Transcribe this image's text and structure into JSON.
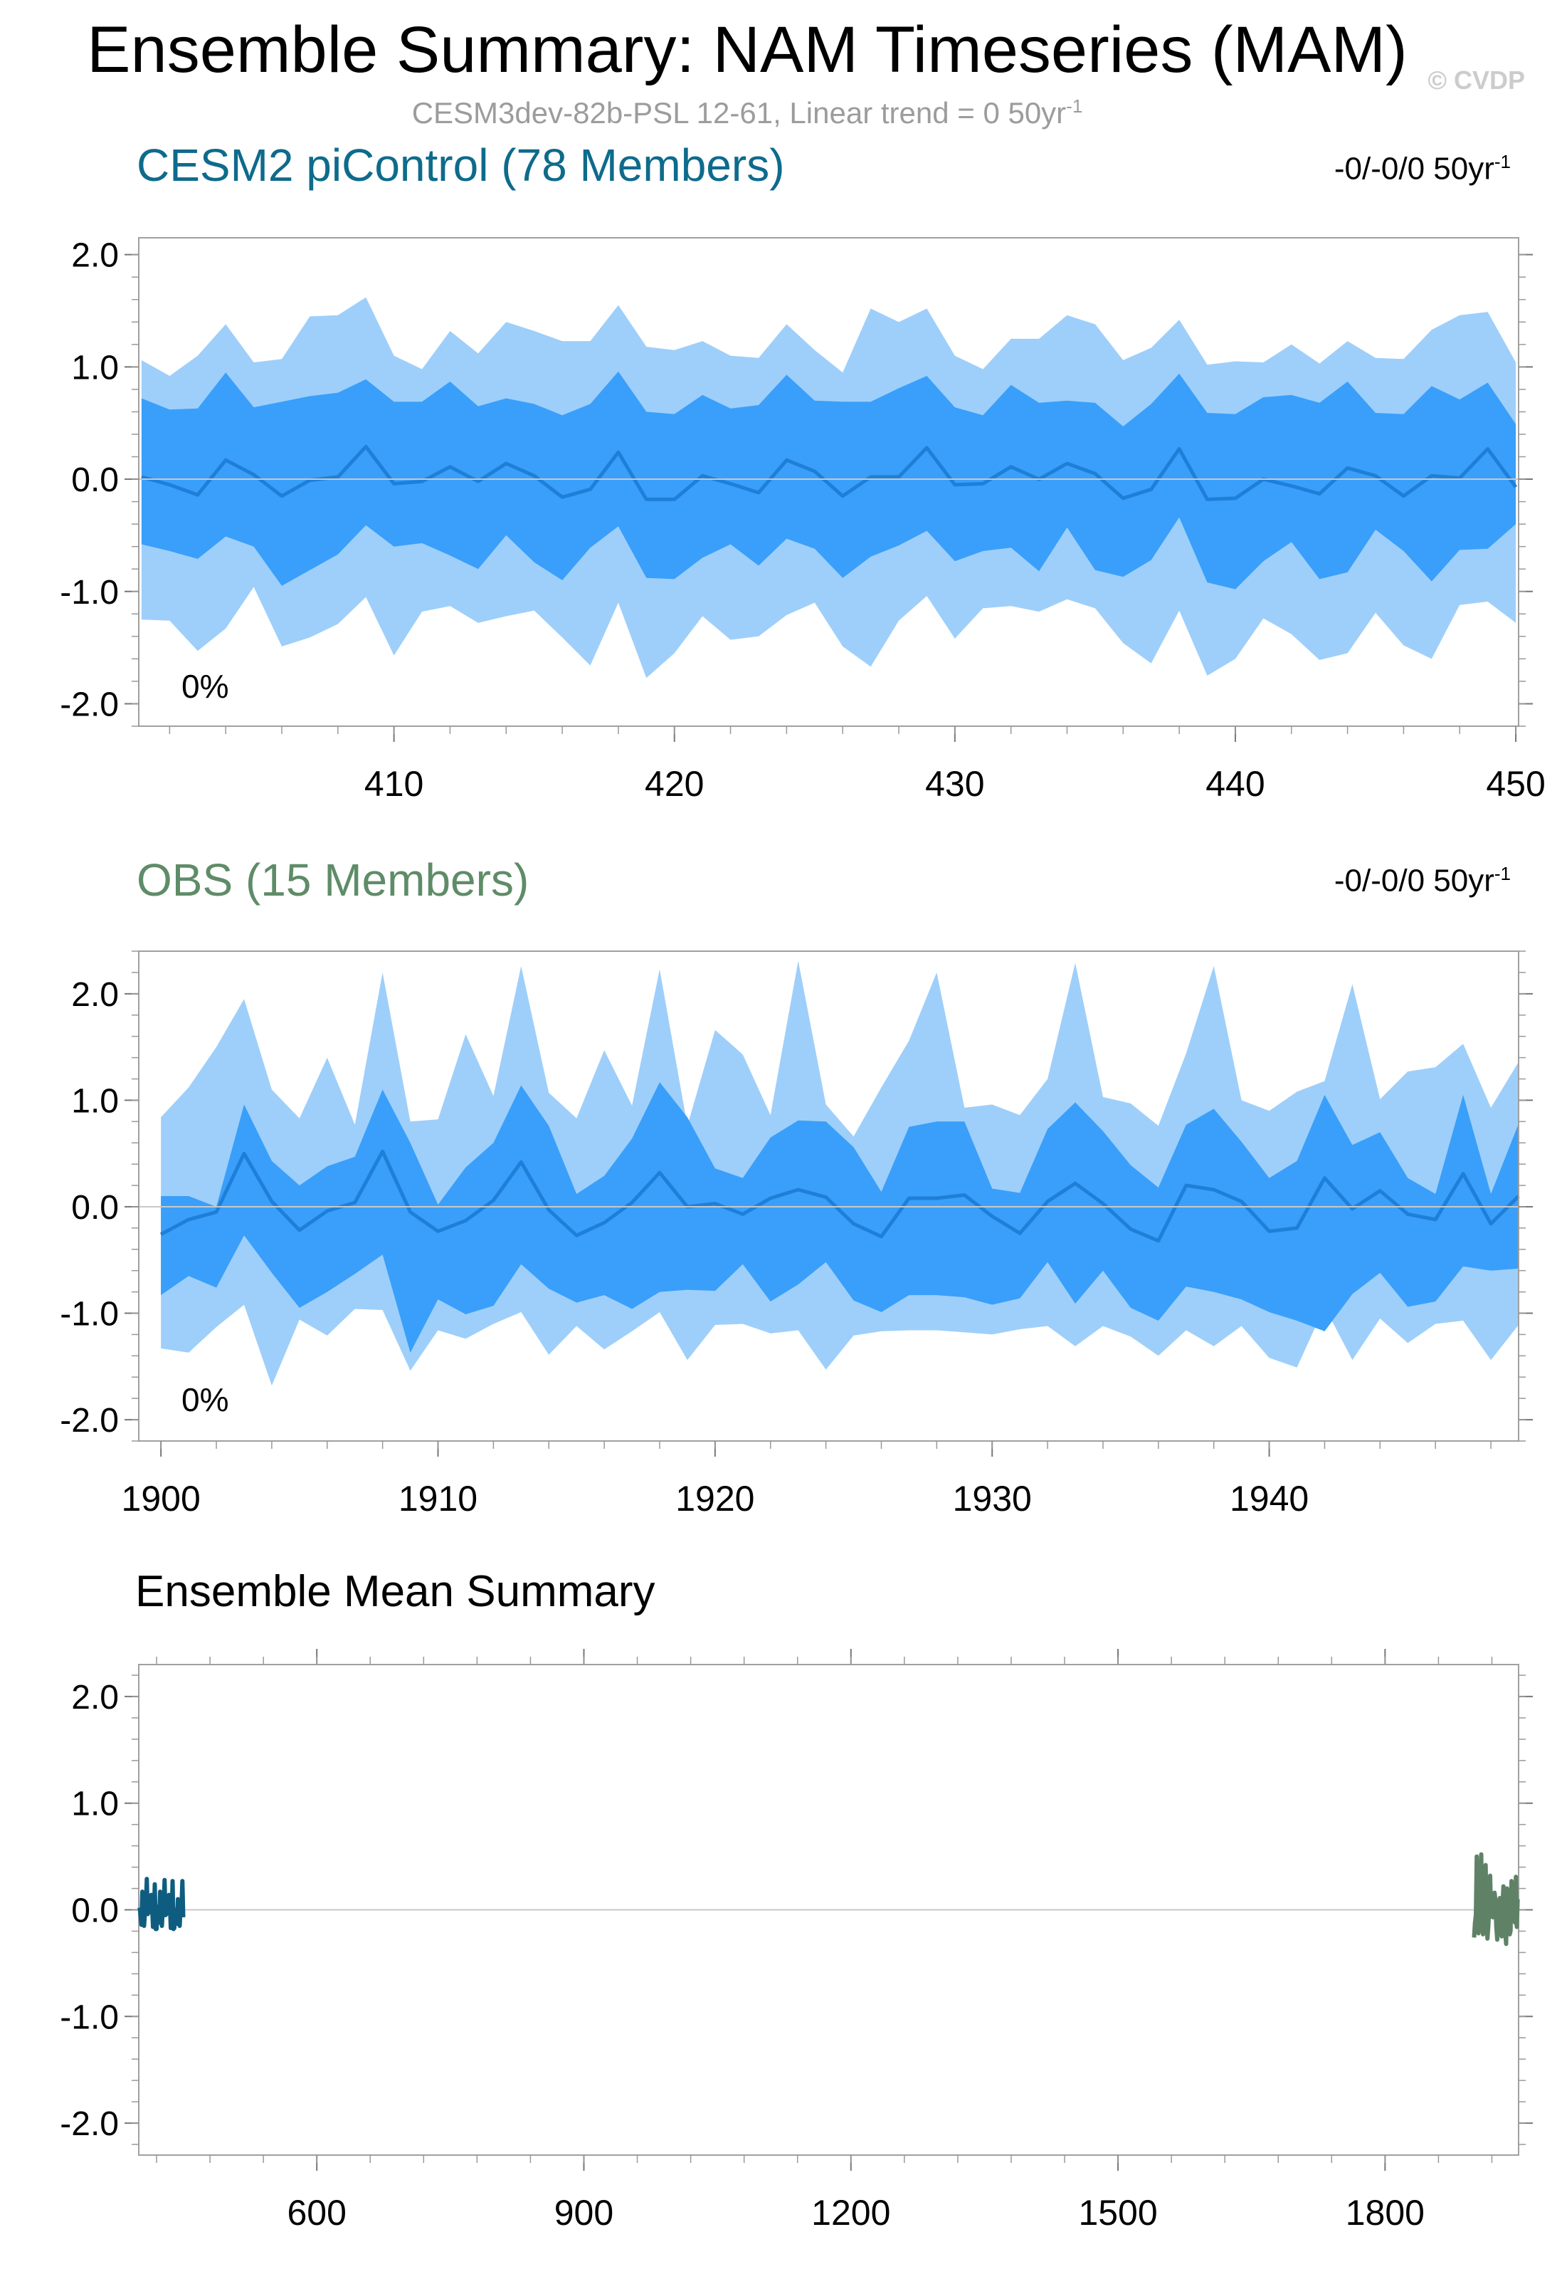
{
  "header": {
    "title": "Ensemble Summary: NAM Timeseries (MAM)",
    "copyright": "© CVDP",
    "subtitle_main": "CESM3dev-82b-PSL 12-61, Linear trend = 0 50yr",
    "subtitle_sup": "-1"
  },
  "colors": {
    "outer_band": "#9ecffa",
    "inner_band": "#399ffa",
    "mean_line": "#1f7fd8",
    "cesm_title": "#0e6b8c",
    "obs_title": "#5f8c68",
    "cesm_mean": "#0e5d80",
    "obs_mean": "#5f8266"
  },
  "panels": [
    {
      "title": "CESM2 piControl (78 Members)",
      "trend_main": "-0/-0/0 50yr",
      "trend_sup": "-1",
      "percent_label": "0%"
    },
    {
      "title": "OBS (15 Members)",
      "trend_main": "-0/-0/0 50yr",
      "trend_sup": "-1",
      "percent_label": "0%"
    },
    {
      "title": "Ensemble Mean Summary"
    }
  ],
  "chart_data": [
    {
      "type": "area",
      "title": "CESM2 piControl (78 Members)",
      "x": [
        401,
        402,
        403,
        404,
        405,
        406,
        407,
        408,
        409,
        410,
        411,
        412,
        413,
        414,
        415,
        416,
        417,
        418,
        419,
        420,
        421,
        422,
        423,
        424,
        425,
        426,
        427,
        428,
        429,
        430,
        431,
        432,
        433,
        434,
        435,
        436,
        437,
        438,
        439,
        440,
        441,
        442,
        443,
        444,
        445,
        446,
        447,
        448,
        449,
        450
      ],
      "outer_upper": [
        1.06,
        0.92,
        1.1,
        1.38,
        1.04,
        1.07,
        1.45,
        1.46,
        1.62,
        1.1,
        0.98,
        1.32,
        1.12,
        1.4,
        1.32,
        1.23,
        1.23,
        1.55,
        1.18,
        1.15,
        1.23,
        1.1,
        1.08,
        1.38,
        1.15,
        0.95,
        1.52,
        1.4,
        1.52,
        1.1,
        0.98,
        1.25,
        1.25,
        1.46,
        1.38,
        1.06,
        1.17,
        1.42,
        1.02,
        1.05,
        1.04,
        1.2,
        1.03,
        1.23,
        1.08,
        1.07,
        1.33,
        1.46,
        1.49,
        1.04
      ],
      "inner_upper": [
        0.72,
        0.62,
        0.63,
        0.95,
        0.64,
        0.69,
        0.74,
        0.77,
        0.89,
        0.69,
        0.69,
        0.87,
        0.65,
        0.72,
        0.67,
        0.57,
        0.67,
        0.96,
        0.6,
        0.58,
        0.75,
        0.63,
        0.66,
        0.93,
        0.7,
        0.69,
        0.69,
        0.81,
        0.92,
        0.64,
        0.57,
        0.84,
        0.68,
        0.7,
        0.68,
        0.47,
        0.67,
        0.94,
        0.59,
        0.58,
        0.73,
        0.75,
        0.68,
        0.87,
        0.59,
        0.58,
        0.83,
        0.71,
        0.86,
        0.49
      ],
      "mean": [
        0.02,
        -0.05,
        -0.14,
        0.17,
        0.04,
        -0.15,
        -0.01,
        0.02,
        0.29,
        -0.04,
        -0.02,
        0.11,
        -0.02,
        0.14,
        0.03,
        -0.16,
        -0.09,
        0.24,
        -0.18,
        -0.18,
        0.03,
        -0.04,
        -0.12,
        0.17,
        0.07,
        -0.15,
        0.02,
        0.02,
        0.28,
        -0.05,
        -0.04,
        0.11,
        0.0,
        0.14,
        0.05,
        -0.17,
        -0.09,
        0.27,
        -0.18,
        -0.17,
        0.0,
        -0.06,
        -0.13,
        0.1,
        0.03,
        -0.15,
        0.03,
        0.01,
        0.27,
        -0.07
      ],
      "inner_lower": [
        -0.58,
        -0.64,
        -0.71,
        -0.51,
        -0.6,
        -0.95,
        -0.81,
        -0.67,
        -0.41,
        -0.6,
        -0.57,
        -0.68,
        -0.8,
        -0.5,
        -0.74,
        -0.9,
        -0.61,
        -0.42,
        -0.88,
        -0.89,
        -0.7,
        -0.58,
        -0.77,
        -0.53,
        -0.62,
        -0.88,
        -0.69,
        -0.59,
        -0.46,
        -0.73,
        -0.64,
        -0.61,
        -0.82,
        -0.43,
        -0.81,
        -0.87,
        -0.72,
        -0.34,
        -0.92,
        -0.98,
        -0.73,
        -0.56,
        -0.89,
        -0.83,
        -0.45,
        -0.64,
        -0.91,
        -0.63,
        -0.62,
        -0.4
      ],
      "outer_lower": [
        -1.25,
        -1.26,
        -1.53,
        -1.33,
        -0.96,
        -1.49,
        -1.41,
        -1.29,
        -1.05,
        -1.57,
        -1.18,
        -1.13,
        -1.28,
        -1.22,
        -1.17,
        -1.41,
        -1.66,
        -1.1,
        -1.77,
        -1.55,
        -1.22,
        -1.43,
        -1.4,
        -1.21,
        -1.1,
        -1.49,
        -1.67,
        -1.26,
        -1.04,
        -1.42,
        -1.15,
        -1.13,
        -1.18,
        -1.07,
        -1.15,
        -1.46,
        -1.64,
        -1.17,
        -1.75,
        -1.6,
        -1.24,
        -1.38,
        -1.61,
        -1.55,
        -1.19,
        -1.48,
        -1.6,
        -1.12,
        -1.09,
        -1.28
      ],
      "xticks": [
        410,
        420,
        430,
        440,
        450
      ],
      "xlim": [
        400.9,
        450.1
      ],
      "ylim": [
        -2.2,
        2.15
      ],
      "yticks": [
        "2.0",
        "1.0",
        "0.0",
        "-1.0",
        "-2.0"
      ]
    },
    {
      "type": "area",
      "title": "OBS (15 Members)",
      "x": [
        1900,
        1901,
        1902,
        1903,
        1904,
        1905,
        1906,
        1907,
        1908,
        1909,
        1910,
        1911,
        1912,
        1913,
        1914,
        1915,
        1916,
        1917,
        1918,
        1919,
        1920,
        1921,
        1922,
        1923,
        1924,
        1925,
        1926,
        1927,
        1928,
        1929,
        1930,
        1931,
        1932,
        1933,
        1934,
        1935,
        1936,
        1937,
        1938,
        1939,
        1940,
        1941,
        1942,
        1943,
        1944,
        1945,
        1946,
        1947,
        1948,
        1949
      ],
      "outer_upper": [
        0.84,
        1.12,
        1.5,
        1.95,
        1.1,
        0.83,
        1.4,
        0.77,
        2.2,
        0.8,
        0.82,
        1.62,
        1.04,
        2.26,
        1.07,
        0.83,
        1.47,
        0.95,
        2.23,
        0.76,
        1.66,
        1.43,
        0.86,
        2.31,
        0.96,
        0.66,
        1.12,
        1.56,
        2.2,
        0.93,
        0.96,
        0.86,
        1.2,
        2.29,
        1.03,
        0.97,
        0.76,
        1.44,
        2.26,
        1.0,
        0.9,
        1.08,
        1.18,
        2.09,
        1.01,
        1.27,
        1.31,
        1.53,
        0.93,
        1.36
      ],
      "inner_upper": [
        0.1,
        0.1,
        0.0,
        0.96,
        0.43,
        0.2,
        0.38,
        0.47,
        1.1,
        0.6,
        0.02,
        0.37,
        0.6,
        1.14,
        0.76,
        0.12,
        0.29,
        0.64,
        1.17,
        0.84,
        0.36,
        0.27,
        0.65,
        0.81,
        0.8,
        0.56,
        0.14,
        0.75,
        0.8,
        0.8,
        0.17,
        0.13,
        0.73,
        0.98,
        0.71,
        0.39,
        0.18,
        0.77,
        0.92,
        0.61,
        0.27,
        0.43,
        1.05,
        0.58,
        0.7,
        0.27,
        0.12,
        1.05,
        0.12,
        0.78
      ],
      "mean": [
        -0.26,
        -0.12,
        -0.05,
        0.5,
        0.05,
        -0.22,
        -0.04,
        0.04,
        0.52,
        -0.05,
        -0.23,
        -0.13,
        0.06,
        0.42,
        -0.03,
        -0.27,
        -0.15,
        0.04,
        0.32,
        0.0,
        0.03,
        -0.07,
        0.08,
        0.16,
        0.09,
        -0.16,
        -0.28,
        0.08,
        0.08,
        0.11,
        -0.09,
        -0.25,
        0.05,
        0.22,
        0.03,
        -0.21,
        -0.32,
        0.2,
        0.16,
        0.05,
        -0.23,
        -0.2,
        0.27,
        -0.02,
        0.15,
        -0.07,
        -0.12,
        0.31,
        -0.16,
        0.1
      ],
      "inner_lower": [
        -0.83,
        -0.65,
        -0.76,
        -0.27,
        -0.62,
        -0.95,
        -0.8,
        -0.63,
        -0.45,
        -1.37,
        -0.87,
        -1.01,
        -0.93,
        -0.54,
        -0.77,
        -0.9,
        -0.83,
        -0.96,
        -0.8,
        -0.78,
        -0.79,
        -0.54,
        -0.89,
        -0.73,
        -0.52,
        -0.88,
        -0.99,
        -0.83,
        -0.83,
        -0.85,
        -0.92,
        -0.86,
        -0.52,
        -0.91,
        -0.6,
        -0.95,
        -1.07,
        -0.75,
        -0.8,
        -0.87,
        -0.99,
        -1.07,
        -1.17,
        -0.82,
        -0.62,
        -0.94,
        -0.89,
        -0.56,
        -0.6,
        -0.58
      ],
      "outer_lower": [
        -1.33,
        -1.37,
        -1.13,
        -0.92,
        -1.68,
        -1.06,
        -1.21,
        -0.96,
        -0.97,
        -1.54,
        -1.16,
        -1.24,
        -1.1,
        -0.99,
        -1.39,
        -1.12,
        -1.34,
        -1.17,
        -0.99,
        -1.44,
        -1.11,
        -1.1,
        -1.19,
        -1.16,
        -1.53,
        -1.21,
        -1.17,
        -1.16,
        -1.16,
        -1.18,
        -1.2,
        -1.15,
        -1.12,
        -1.31,
        -1.12,
        -1.22,
        -1.4,
        -1.16,
        -1.31,
        -1.12,
        -1.42,
        -1.51,
        -0.94,
        -1.44,
        -1.05,
        -1.28,
        -1.1,
        -1.07,
        -1.44,
        -1.11
      ],
      "xticks": [
        1900,
        1910,
        1920,
        1930,
        1940
      ],
      "xlim": [
        1899.2,
        1949.0
      ],
      "ylim": [
        -2.2,
        2.4
      ],
      "yticks": [
        "2.0",
        "1.0",
        "0.0",
        "-1.0",
        "-2.0"
      ]
    },
    {
      "type": "line",
      "title": "Ensemble Mean Summary",
      "xlim": [
        400,
        1950
      ],
      "ylim": [
        -2.3,
        2.3
      ],
      "xticks": [
        600,
        900,
        1200,
        1500,
        1800
      ],
      "yticks": [
        "2.0",
        "1.0",
        "0.0",
        "-1.0",
        "-2.0"
      ],
      "series": [
        {
          "name": "CESM2 piControl",
          "color": "#0e5d80",
          "x_start": 401,
          "x_end": 450
        },
        {
          "name": "OBS",
          "color": "#5f8266",
          "x_start": 1900,
          "x_end": 1949
        }
      ]
    }
  ]
}
